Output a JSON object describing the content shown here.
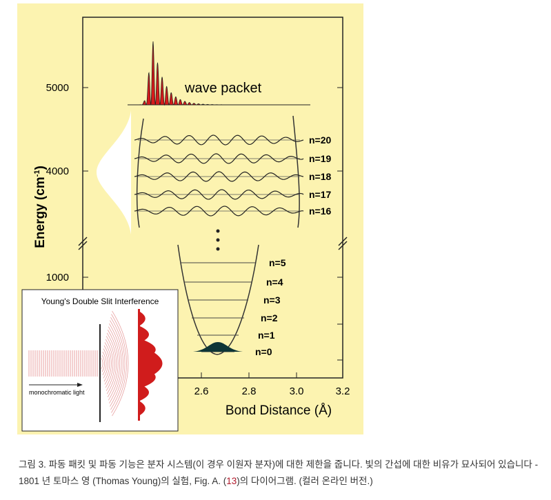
{
  "figure": {
    "wave_packet_label": "wave packet",
    "y_axis": {
      "label_parts": [
        "Energy (cm",
        "-1",
        ")"
      ],
      "ticks": [
        "5000",
        "4000",
        "1000"
      ]
    },
    "x_axis": {
      "label": "Bond Distance (Å)",
      "ticks": [
        "2.6",
        "2.8",
        "3.0",
        "3.2"
      ]
    },
    "upper_levels": [
      "n=20",
      "n=19",
      "n=18",
      "n=17",
      "n=16"
    ],
    "lower_levels": [
      "n=5",
      "n=4",
      "n=3",
      "n=2",
      "n=1",
      "n=0"
    ],
    "inset": {
      "title": "Young's Double Slit Interference",
      "arrow_label": "monochromatic light"
    }
  },
  "caption": {
    "before_link": "그림 3. 파동 패킷 및 파동 기능은 분자 시스템(이 경우 이원자 분자)에 대한 제한을 줍니다. 빛의 간섭에 대한 비유가 묘사되어 있습니다 - 1801 년 토마스 영 (Thomas Young)의 실험, Fig. A. (",
    "link": "13",
    "after_link": ")의 다이어그램. (컬러 온라인 버전.)"
  }
}
